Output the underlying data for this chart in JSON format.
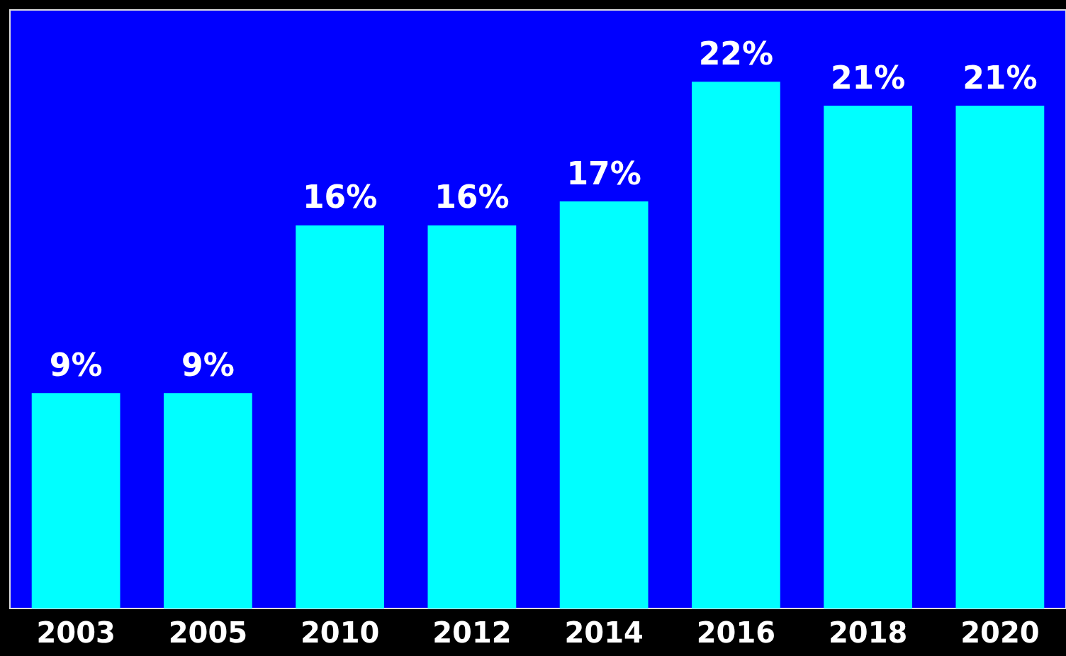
{
  "chart_data": {
    "type": "bar",
    "categories": [
      "2003",
      "2005",
      "2010",
      "2012",
      "2014",
      "2016",
      "2018",
      "2020"
    ],
    "values": [
      9,
      9,
      16,
      16,
      17,
      22,
      21,
      21
    ],
    "value_labels": [
      "9%",
      "9%",
      "16%",
      "16%",
      "17%",
      "22%",
      "21%",
      "21%"
    ],
    "color": "#00ffff",
    "grid": false
  }
}
